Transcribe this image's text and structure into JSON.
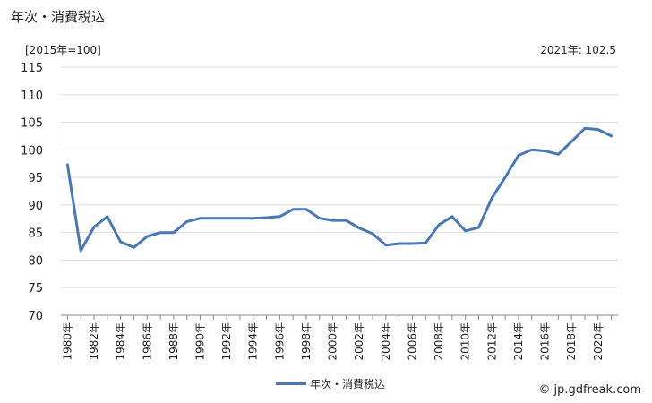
{
  "title": "年次・消費税込",
  "unit_label": "[2015年=100]",
  "latest_label": "2021年: 102.5",
  "credit": "© jp.gdfreak.com",
  "colors": {
    "line": "#4a78b2",
    "grid": "#dddddd",
    "axis": "#888888"
  },
  "chart_data": {
    "type": "line",
    "title": "年次・消費税込",
    "ylabel": "[2015年=100]",
    "ylim": [
      70,
      115
    ],
    "yticks": [
      70,
      75,
      80,
      85,
      90,
      95,
      100,
      105,
      110,
      115
    ],
    "x": [
      "1980年",
      "1981年",
      "1982年",
      "1983年",
      "1984年",
      "1985年",
      "1986年",
      "1987年",
      "1988年",
      "1989年",
      "1990年",
      "1991年",
      "1992年",
      "1993年",
      "1994年",
      "1995年",
      "1996年",
      "1997年",
      "1998年",
      "1999年",
      "2000年",
      "2001年",
      "2002年",
      "2003年",
      "2004年",
      "2005年",
      "2006年",
      "2007年",
      "2008年",
      "2009年",
      "2010年",
      "2011年",
      "2012年",
      "2013年",
      "2014年",
      "2015年",
      "2016年",
      "2017年",
      "2018年",
      "2019年",
      "2020年",
      "2021年"
    ],
    "xtick_labels": [
      "1980年",
      "1982年",
      "1984年",
      "1986年",
      "1988年",
      "1990年",
      "1992年",
      "1994年",
      "1996年",
      "1998年",
      "2000年",
      "2002年",
      "2004年",
      "2006年",
      "2008年",
      "2010年",
      "2012年",
      "2014年",
      "2016年",
      "2018年",
      "2020年"
    ],
    "grid": true,
    "legend": "bottom",
    "series": [
      {
        "name": "年次・消費税込",
        "values": [
          97.3,
          81.7,
          86.0,
          87.9,
          83.3,
          82.3,
          84.3,
          85.0,
          85.0,
          87.0,
          87.6,
          87.6,
          87.6,
          87.6,
          87.6,
          87.7,
          87.9,
          89.2,
          89.2,
          87.6,
          87.2,
          87.2,
          85.8,
          84.8,
          82.7,
          83.0,
          83.0,
          83.1,
          86.4,
          87.9,
          85.3,
          85.9,
          91.3,
          95.0,
          99.0,
          100.0,
          99.8,
          99.2,
          101.5,
          103.9,
          103.7,
          102.5
        ]
      }
    ]
  }
}
